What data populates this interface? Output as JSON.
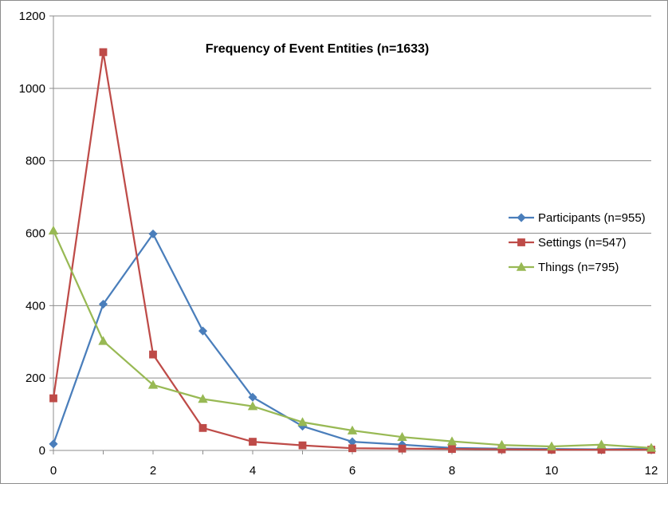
{
  "chart_data": {
    "type": "line",
    "title": "Frequency of Event Entities (n=1633)",
    "xlabel": "",
    "ylabel": "",
    "xlim": [
      0,
      12
    ],
    "ylim": [
      0,
      1200
    ],
    "x_ticks": [
      "0",
      "2",
      "4",
      "6",
      "8",
      "10",
      "12"
    ],
    "y_ticks": [
      "0",
      "200",
      "400",
      "600",
      "800",
      "1000",
      "1200"
    ],
    "grid": "horizontal",
    "legend_position": "right",
    "x": [
      0,
      1,
      2,
      3,
      4,
      5,
      6,
      7,
      8,
      9,
      10,
      11,
      12
    ],
    "series": [
      {
        "name": "Participants (n=955)",
        "color": "#4a7ebb",
        "marker": "diamond",
        "values": [
          18,
          404,
          598,
          330,
          147,
          67,
          24,
          16,
          7,
          5,
          4,
          3,
          5
        ]
      },
      {
        "name": "Settings (n=547)",
        "color": "#be4b48",
        "marker": "square",
        "values": [
          144,
          1100,
          265,
          62,
          24,
          14,
          6,
          5,
          4,
          3,
          2,
          2,
          2
        ]
      },
      {
        "name": "Things (n=795)",
        "color": "#98b954",
        "marker": "triangle",
        "values": [
          607,
          302,
          181,
          142,
          122,
          78,
          55,
          37,
          25,
          15,
          11,
          16,
          7
        ]
      }
    ]
  }
}
